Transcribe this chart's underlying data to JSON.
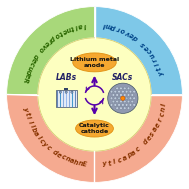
{
  "bg_color": "#ffffff",
  "green_color": "#a8d87a",
  "blue_color": "#7ec8e8",
  "salmon_color": "#f5aa90",
  "inner_color": "#fdffc0",
  "ellipse_color": "#f5a830",
  "ellipse_edge": "#e09010",
  "arrow_color": "#5500aa",
  "text_green": "#2a6600",
  "text_blue": "#004488",
  "text_salmon_bl": "#883300",
  "text_salmon_br": "#883300",
  "lab_box_color": "#c8d4e8",
  "sac_bg_color": "#8898b8",
  "sac_atom_color": "#ff8800",
  "sac_dot_color": "#aab8cc",
  "label_top_left": "Reduced overpotential",
  "label_top_right": "Improved security",
  "label_bottom_left": "Enhanced cyclability",
  "label_bottom_right": "Increased capacity",
  "label_top_ellipse": "Lithium metal\nanode",
  "label_bottom_ellipse": "Catalytic\ncathode",
  "label_labs": "LABs",
  "label_sacs": "SACs",
  "outer_r": 0.93,
  "inner_r": 0.6,
  "fig_size": [
    1.89,
    1.89
  ],
  "dpi": 100
}
